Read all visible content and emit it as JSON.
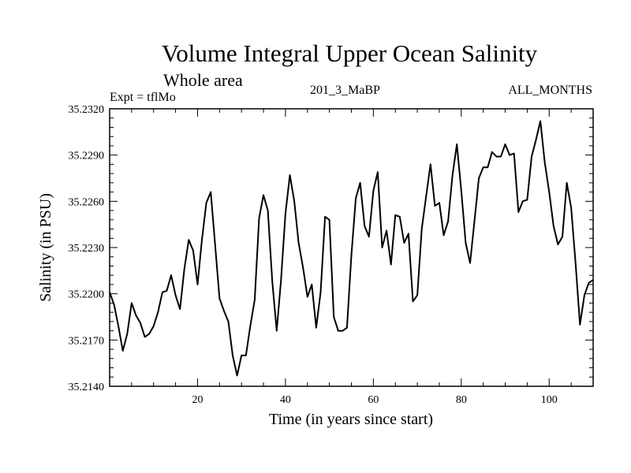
{
  "chart_data": {
    "type": "line",
    "title": "Volume Integral Upper Ocean Salinity",
    "subtitle": "Whole area",
    "experiment_label": "Expt = tflMo",
    "run_label": "201_3_MaBP",
    "months_label": "ALL_MONTHS",
    "xlabel": "Time (in years since start)",
    "ylabel": "Salinity (in PSU)",
    "xlim": [
      0,
      110
    ],
    "ylim": [
      35.214,
      35.232
    ],
    "x_ticks": [
      20,
      40,
      60,
      80,
      100
    ],
    "y_ticks": [
      "35.2140",
      "35.2170",
      "35.2200",
      "35.2230",
      "35.2260",
      "35.2290",
      "35.2320"
    ],
    "line_color": "#000000",
    "series": [
      {
        "name": "salinity",
        "x": [
          0,
          1,
          2,
          3,
          4,
          5,
          6,
          7,
          8,
          9,
          10,
          11,
          12,
          13,
          14,
          15,
          16,
          17,
          18,
          19,
          20,
          21,
          22,
          23,
          24,
          25,
          26,
          27,
          28,
          29,
          30,
          31,
          32,
          33,
          34,
          35,
          36,
          37,
          38,
          39,
          40,
          41,
          42,
          43,
          44,
          45,
          46,
          47,
          48,
          49,
          50,
          51,
          52,
          53,
          54,
          55,
          56,
          57,
          58,
          59,
          60,
          61,
          62,
          63,
          64,
          65,
          66,
          67,
          68,
          69,
          70,
          71,
          72,
          73,
          74,
          75,
          76,
          77,
          78,
          79,
          80,
          81,
          82,
          83,
          84,
          85,
          86,
          87,
          88,
          89,
          90,
          91,
          92,
          93,
          94,
          95,
          96,
          97,
          98,
          99,
          100,
          101,
          102,
          103,
          104,
          105,
          106,
          107,
          108,
          109,
          110
        ],
        "values": [
          35.2201,
          35.2193,
          35.2179,
          35.2163,
          35.2174,
          35.2194,
          35.2186,
          35.2181,
          35.2172,
          35.2174,
          35.2179,
          35.2188,
          35.2201,
          35.2202,
          35.2212,
          35.2199,
          35.219,
          35.2216,
          35.2235,
          35.2228,
          35.2206,
          35.2235,
          35.2259,
          35.2266,
          35.2232,
          35.2197,
          35.2189,
          35.2182,
          35.216,
          35.2147,
          35.216,
          35.216,
          35.2179,
          35.2196,
          35.2249,
          35.2264,
          35.2254,
          35.2208,
          35.2176,
          35.2209,
          35.2252,
          35.2277,
          35.226,
          35.2233,
          35.2217,
          35.2198,
          35.2206,
          35.2178,
          35.2201,
          35.225,
          35.2248,
          35.2185,
          35.2176,
          35.2176,
          35.2178,
          35.2225,
          35.2262,
          35.2272,
          35.2244,
          35.2237,
          35.2267,
          35.2279,
          35.223,
          35.2241,
          35.2219,
          35.2251,
          35.225,
          35.2233,
          35.2239,
          35.2195,
          35.2199,
          35.2242,
          35.2263,
          35.2284,
          35.2257,
          35.2259,
          35.2238,
          35.2247,
          35.2277,
          35.2297,
          35.2267,
          35.2233,
          35.222,
          35.2247,
          35.2275,
          35.2282,
          35.2282,
          35.2292,
          35.2289,
          35.2289,
          35.2297,
          35.229,
          35.2291,
          35.2253,
          35.226,
          35.2261,
          35.2289,
          35.23,
          35.2312,
          35.2285,
          35.2266,
          35.2244,
          35.2232,
          35.2237,
          35.2272,
          35.2256,
          35.222,
          35.218,
          35.2199,
          35.2207,
          35.2209
        ]
      }
    ]
  }
}
